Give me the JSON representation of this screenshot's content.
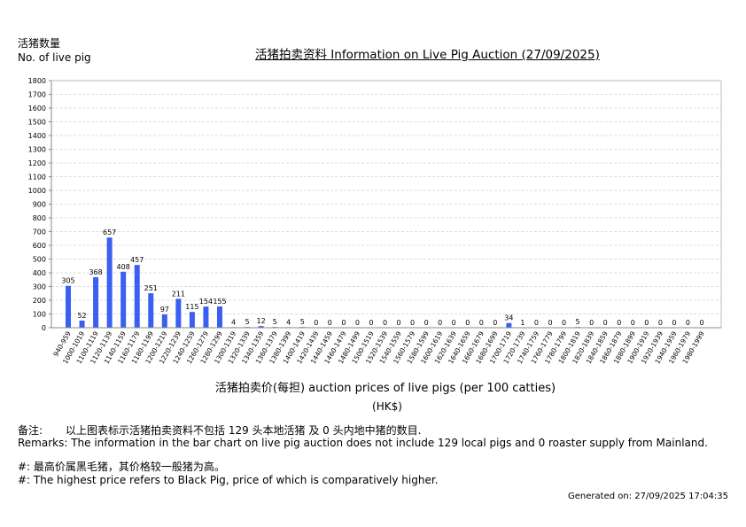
{
  "header": {
    "y_axis_label_zh": "活猪数量",
    "y_axis_label_en": "No. of live pig",
    "title": "活猪拍卖资料 Information on Live Pig Auction (27/09/2025)"
  },
  "chart_data": {
    "type": "bar",
    "title": "活猪拍卖资料 Information on Live Pig Auction (27/09/2025)",
    "xlabel": "活猪拍卖价(每担) auction prices of live pigs (per 100 catties)",
    "xlabel_unit": "(HK$)",
    "ylabel": "活猪数量 No. of live pig",
    "ylim": [
      0,
      1800
    ],
    "yticks": [
      0,
      100,
      200,
      300,
      400,
      500,
      600,
      700,
      800,
      900,
      1000,
      1100,
      1200,
      1300,
      1400,
      1500,
      1600,
      1700,
      1800
    ],
    "grid": true,
    "legend": "none",
    "bar_color": "#3B5FF0",
    "categories": [
      "940-959",
      "1000-1019",
      "1100-1119",
      "1120-1139",
      "1140-1159",
      "1160-1179",
      "1180-1199",
      "1200-1219",
      "1220-1239",
      "1240-1259",
      "1260-1279",
      "1280-1299",
      "1300-1319",
      "1320-1339",
      "1340-1359",
      "1360-1379",
      "1380-1399",
      "1400-1419",
      "1420-1439",
      "1440-1459",
      "1460-1479",
      "1480-1499",
      "1500-1519",
      "1520-1539",
      "1540-1559",
      "1560-1579",
      "1580-1599",
      "1600-1619",
      "1620-1639",
      "1640-1659",
      "1660-1679",
      "1680-1699",
      "1700-1719",
      "1720-1739",
      "1740-1759",
      "1760-1779",
      "1780-1799",
      "1800-1819",
      "1820-1839",
      "1840-1859",
      "1860-1879",
      "1880-1899",
      "1900-1919",
      "1920-1939",
      "1940-1959",
      "1960-1979",
      "1980-1999"
    ],
    "values": [
      305,
      52,
      368,
      657,
      408,
      457,
      251,
      97,
      211,
      115,
      154,
      155,
      4,
      5,
      12,
      5,
      4,
      5,
      0,
      0,
      0,
      0,
      0,
      0,
      0,
      0,
      0,
      0,
      0,
      0,
      0,
      0,
      34,
      1,
      0,
      0,
      0,
      5,
      0,
      0,
      0,
      0,
      0,
      0,
      0,
      0,
      0
    ]
  },
  "footer": {
    "xlabel": "活猪拍卖价(每担) auction prices of live pigs (per 100 catties)",
    "xlabel_unit": "(HK$)",
    "remarks_zh_label": "备注:",
    "remarks_zh": "以上图表标示活猪拍卖资料不包括 129 头本地活猪 及 0 头内地中猪的数目.",
    "remarks_en": "Remarks: The information in the bar chart on live pig auction does not include 129 local pigs and 0 roaster supply from Mainland.",
    "note_zh": "#: 最高价属黑毛猪，其价格较一般猪为高。",
    "note_en": "#: The highest price refers to Black Pig, price of which is comparatively higher.",
    "generated": "Generated on: 27/09/2025 17:04:35"
  }
}
